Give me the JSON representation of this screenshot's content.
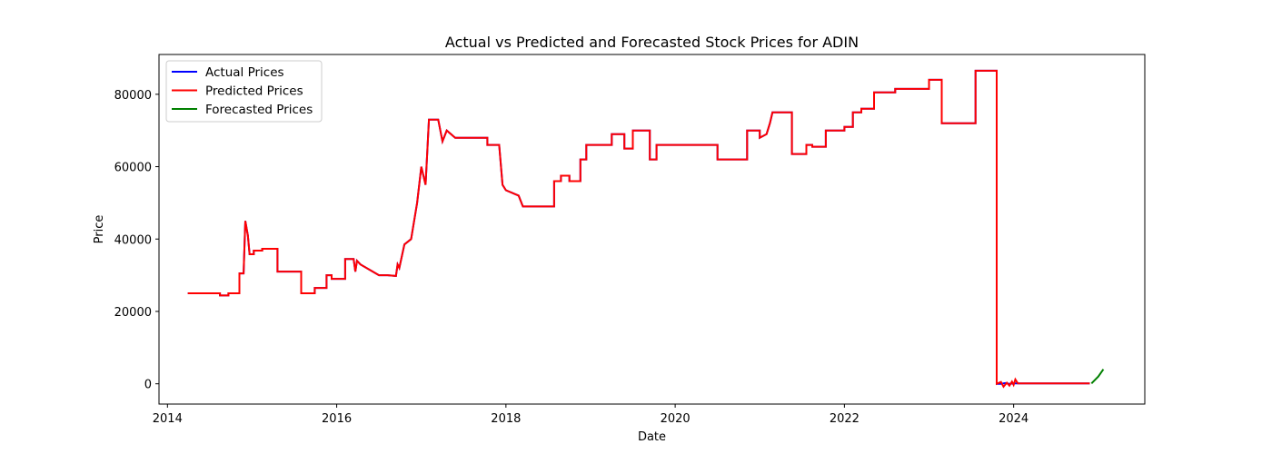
{
  "chart_data": {
    "type": "line",
    "title": "Actual vs Predicted and Forecasted Stock Prices for ADIN",
    "xlabel": "Date",
    "ylabel": "Price",
    "xlim": [
      2013.9,
      2025.55
    ],
    "ylim": [
      -5600,
      91000
    ],
    "x_ticks": [
      2014,
      2016,
      2018,
      2020,
      2022,
      2024
    ],
    "y_ticks": [
      0,
      20000,
      40000,
      60000,
      80000
    ],
    "grid": false,
    "legend_position": "top-left",
    "series": [
      {
        "name": "Actual Prices",
        "color": "#0000ff",
        "x": [
          2014.24,
          2014.62,
          2014.62,
          2014.72,
          2014.72,
          2014.85,
          2014.85,
          2014.9,
          2014.92,
          2014.95,
          2014.97,
          2015.02,
          2015.02,
          2015.12,
          2015.12,
          2015.3,
          2015.3,
          2015.38,
          2015.38,
          2015.58,
          2015.58,
          2015.74,
          2015.74,
          2015.88,
          2015.88,
          2015.94,
          2015.94,
          2016.1,
          2016.1,
          2016.2,
          2016.22,
          2016.24,
          2016.28,
          2016.5,
          2016.5,
          2016.6,
          2016.6,
          2016.7,
          2016.72,
          2016.74,
          2016.8,
          2016.88,
          2016.95,
          2017.0,
          2017.05,
          2017.09,
          2017.2,
          2017.25,
          2017.3,
          2017.4,
          2017.78,
          2017.78,
          2017.92,
          2017.96,
          2018.0,
          2018.15,
          2018.2,
          2018.57,
          2018.57,
          2018.65,
          2018.65,
          2018.75,
          2018.75,
          2018.88,
          2018.88,
          2018.95,
          2018.95,
          2019.25,
          2019.25,
          2019.4,
          2019.4,
          2019.5,
          2019.5,
          2019.7,
          2019.7,
          2019.78,
          2019.78,
          2020.5,
          2020.5,
          2020.85,
          2020.85,
          2021.0,
          2021.0,
          2021.08,
          2021.12,
          2021.15,
          2021.15,
          2021.38,
          2021.38,
          2021.55,
          2021.55,
          2021.62,
          2021.62,
          2021.78,
          2021.78,
          2022.0,
          2022.0,
          2022.1,
          2022.1,
          2022.2,
          2022.2,
          2022.35,
          2022.35,
          2022.6,
          2022.6,
          2023.0,
          2023.0,
          2023.15,
          2023.15,
          2023.55,
          2023.55,
          2023.8,
          2023.8,
          2023.85,
          2023.9,
          2023.95,
          2024.0,
          2024.05,
          2024.3,
          2024.9
        ],
        "y": [
          25000,
          25000,
          24400,
          24400,
          25000,
          25000,
          30500,
          30500,
          45000,
          41000,
          35800,
          35800,
          36800,
          36800,
          37300,
          37300,
          31000,
          31000,
          31000,
          31000,
          25000,
          25000,
          26500,
          26500,
          30000,
          30000,
          29000,
          29000,
          34500,
          34500,
          31000,
          34000,
          33000,
          30000,
          30000,
          30000,
          30000,
          29800,
          33000,
          32000,
          38500,
          40000,
          50000,
          60000,
          55000,
          73000,
          73000,
          67000,
          70000,
          68000,
          68000,
          66000,
          66000,
          55000,
          53500,
          52000,
          49000,
          49000,
          56000,
          56000,
          57500,
          57500,
          56000,
          56000,
          62000,
          62000,
          66000,
          66000,
          69000,
          69000,
          65000,
          65000,
          70000,
          70000,
          62000,
          62000,
          66000,
          66000,
          62000,
          62000,
          70000,
          70000,
          68000,
          69000,
          72000,
          75000,
          75000,
          75000,
          63500,
          63500,
          66000,
          66000,
          65500,
          65500,
          70000,
          70000,
          71000,
          71000,
          75000,
          75000,
          76000,
          76000,
          80500,
          80500,
          81500,
          81500,
          84000,
          84000,
          72000,
          72000,
          86500,
          86500,
          0,
          0,
          200,
          0,
          100,
          100,
          100,
          100
        ]
      },
      {
        "name": "Predicted Prices",
        "color": "#ff0000",
        "x": [
          2014.24,
          2014.62,
          2014.62,
          2014.72,
          2014.72,
          2014.85,
          2014.85,
          2014.9,
          2014.92,
          2014.95,
          2014.97,
          2015.02,
          2015.02,
          2015.12,
          2015.12,
          2015.3,
          2015.3,
          2015.38,
          2015.38,
          2015.58,
          2015.58,
          2015.74,
          2015.74,
          2015.88,
          2015.88,
          2015.94,
          2015.94,
          2016.1,
          2016.1,
          2016.2,
          2016.22,
          2016.24,
          2016.28,
          2016.5,
          2016.5,
          2016.6,
          2016.6,
          2016.7,
          2016.72,
          2016.74,
          2016.8,
          2016.88,
          2016.95,
          2017.0,
          2017.05,
          2017.09,
          2017.2,
          2017.25,
          2017.3,
          2017.4,
          2017.78,
          2017.78,
          2017.92,
          2017.96,
          2018.0,
          2018.15,
          2018.2,
          2018.57,
          2018.57,
          2018.65,
          2018.65,
          2018.75,
          2018.75,
          2018.88,
          2018.88,
          2018.95,
          2018.95,
          2019.25,
          2019.25,
          2019.4,
          2019.4,
          2019.5,
          2019.5,
          2019.7,
          2019.7,
          2019.78,
          2019.78,
          2020.5,
          2020.5,
          2020.85,
          2020.85,
          2021.0,
          2021.0,
          2021.08,
          2021.12,
          2021.15,
          2021.15,
          2021.38,
          2021.38,
          2021.55,
          2021.55,
          2021.62,
          2021.62,
          2021.78,
          2021.78,
          2022.0,
          2022.0,
          2022.1,
          2022.1,
          2022.2,
          2022.2,
          2022.35,
          2022.35,
          2022.6,
          2022.6,
          2023.0,
          2023.0,
          2023.15,
          2023.15,
          2023.55,
          2023.55,
          2023.8,
          2023.8,
          2023.85,
          2023.88,
          2023.92,
          2023.95,
          2023.98,
          2024.0,
          2024.02,
          2024.05,
          2024.3,
          2024.9
        ],
        "y": [
          25000,
          25000,
          24400,
          24400,
          25000,
          25000,
          30500,
          30500,
          45000,
          41000,
          35800,
          35800,
          36800,
          36800,
          37300,
          37300,
          31000,
          31000,
          31000,
          31000,
          25000,
          25000,
          26500,
          26500,
          30000,
          30000,
          29000,
          29000,
          34500,
          34500,
          31000,
          34000,
          33000,
          30000,
          30000,
          30000,
          30000,
          29800,
          33000,
          32000,
          38500,
          40000,
          50000,
          60000,
          55000,
          73000,
          73000,
          67000,
          70000,
          68000,
          68000,
          66000,
          66000,
          55000,
          53500,
          52000,
          49000,
          49000,
          56000,
          56000,
          57500,
          57500,
          56000,
          56000,
          62000,
          62000,
          66000,
          66000,
          69000,
          69000,
          65000,
          65000,
          70000,
          70000,
          62000,
          62000,
          66000,
          66000,
          62000,
          62000,
          70000,
          70000,
          68000,
          69000,
          72000,
          75000,
          75000,
          75000,
          63500,
          63500,
          66000,
          66000,
          65500,
          65500,
          70000,
          70000,
          71000,
          71000,
          75000,
          75000,
          76000,
          76000,
          80500,
          80500,
          81500,
          81500,
          84000,
          84000,
          72000,
          72000,
          86500,
          86500,
          0,
          500,
          -800,
          300,
          -500,
          600,
          -300,
          1200,
          100,
          100,
          100
        ]
      },
      {
        "name": "Forecasted Prices",
        "color": "#008000",
        "x": [
          2024.92,
          2025.0,
          2025.06
        ],
        "y": [
          100,
          2000,
          4000
        ]
      }
    ]
  }
}
